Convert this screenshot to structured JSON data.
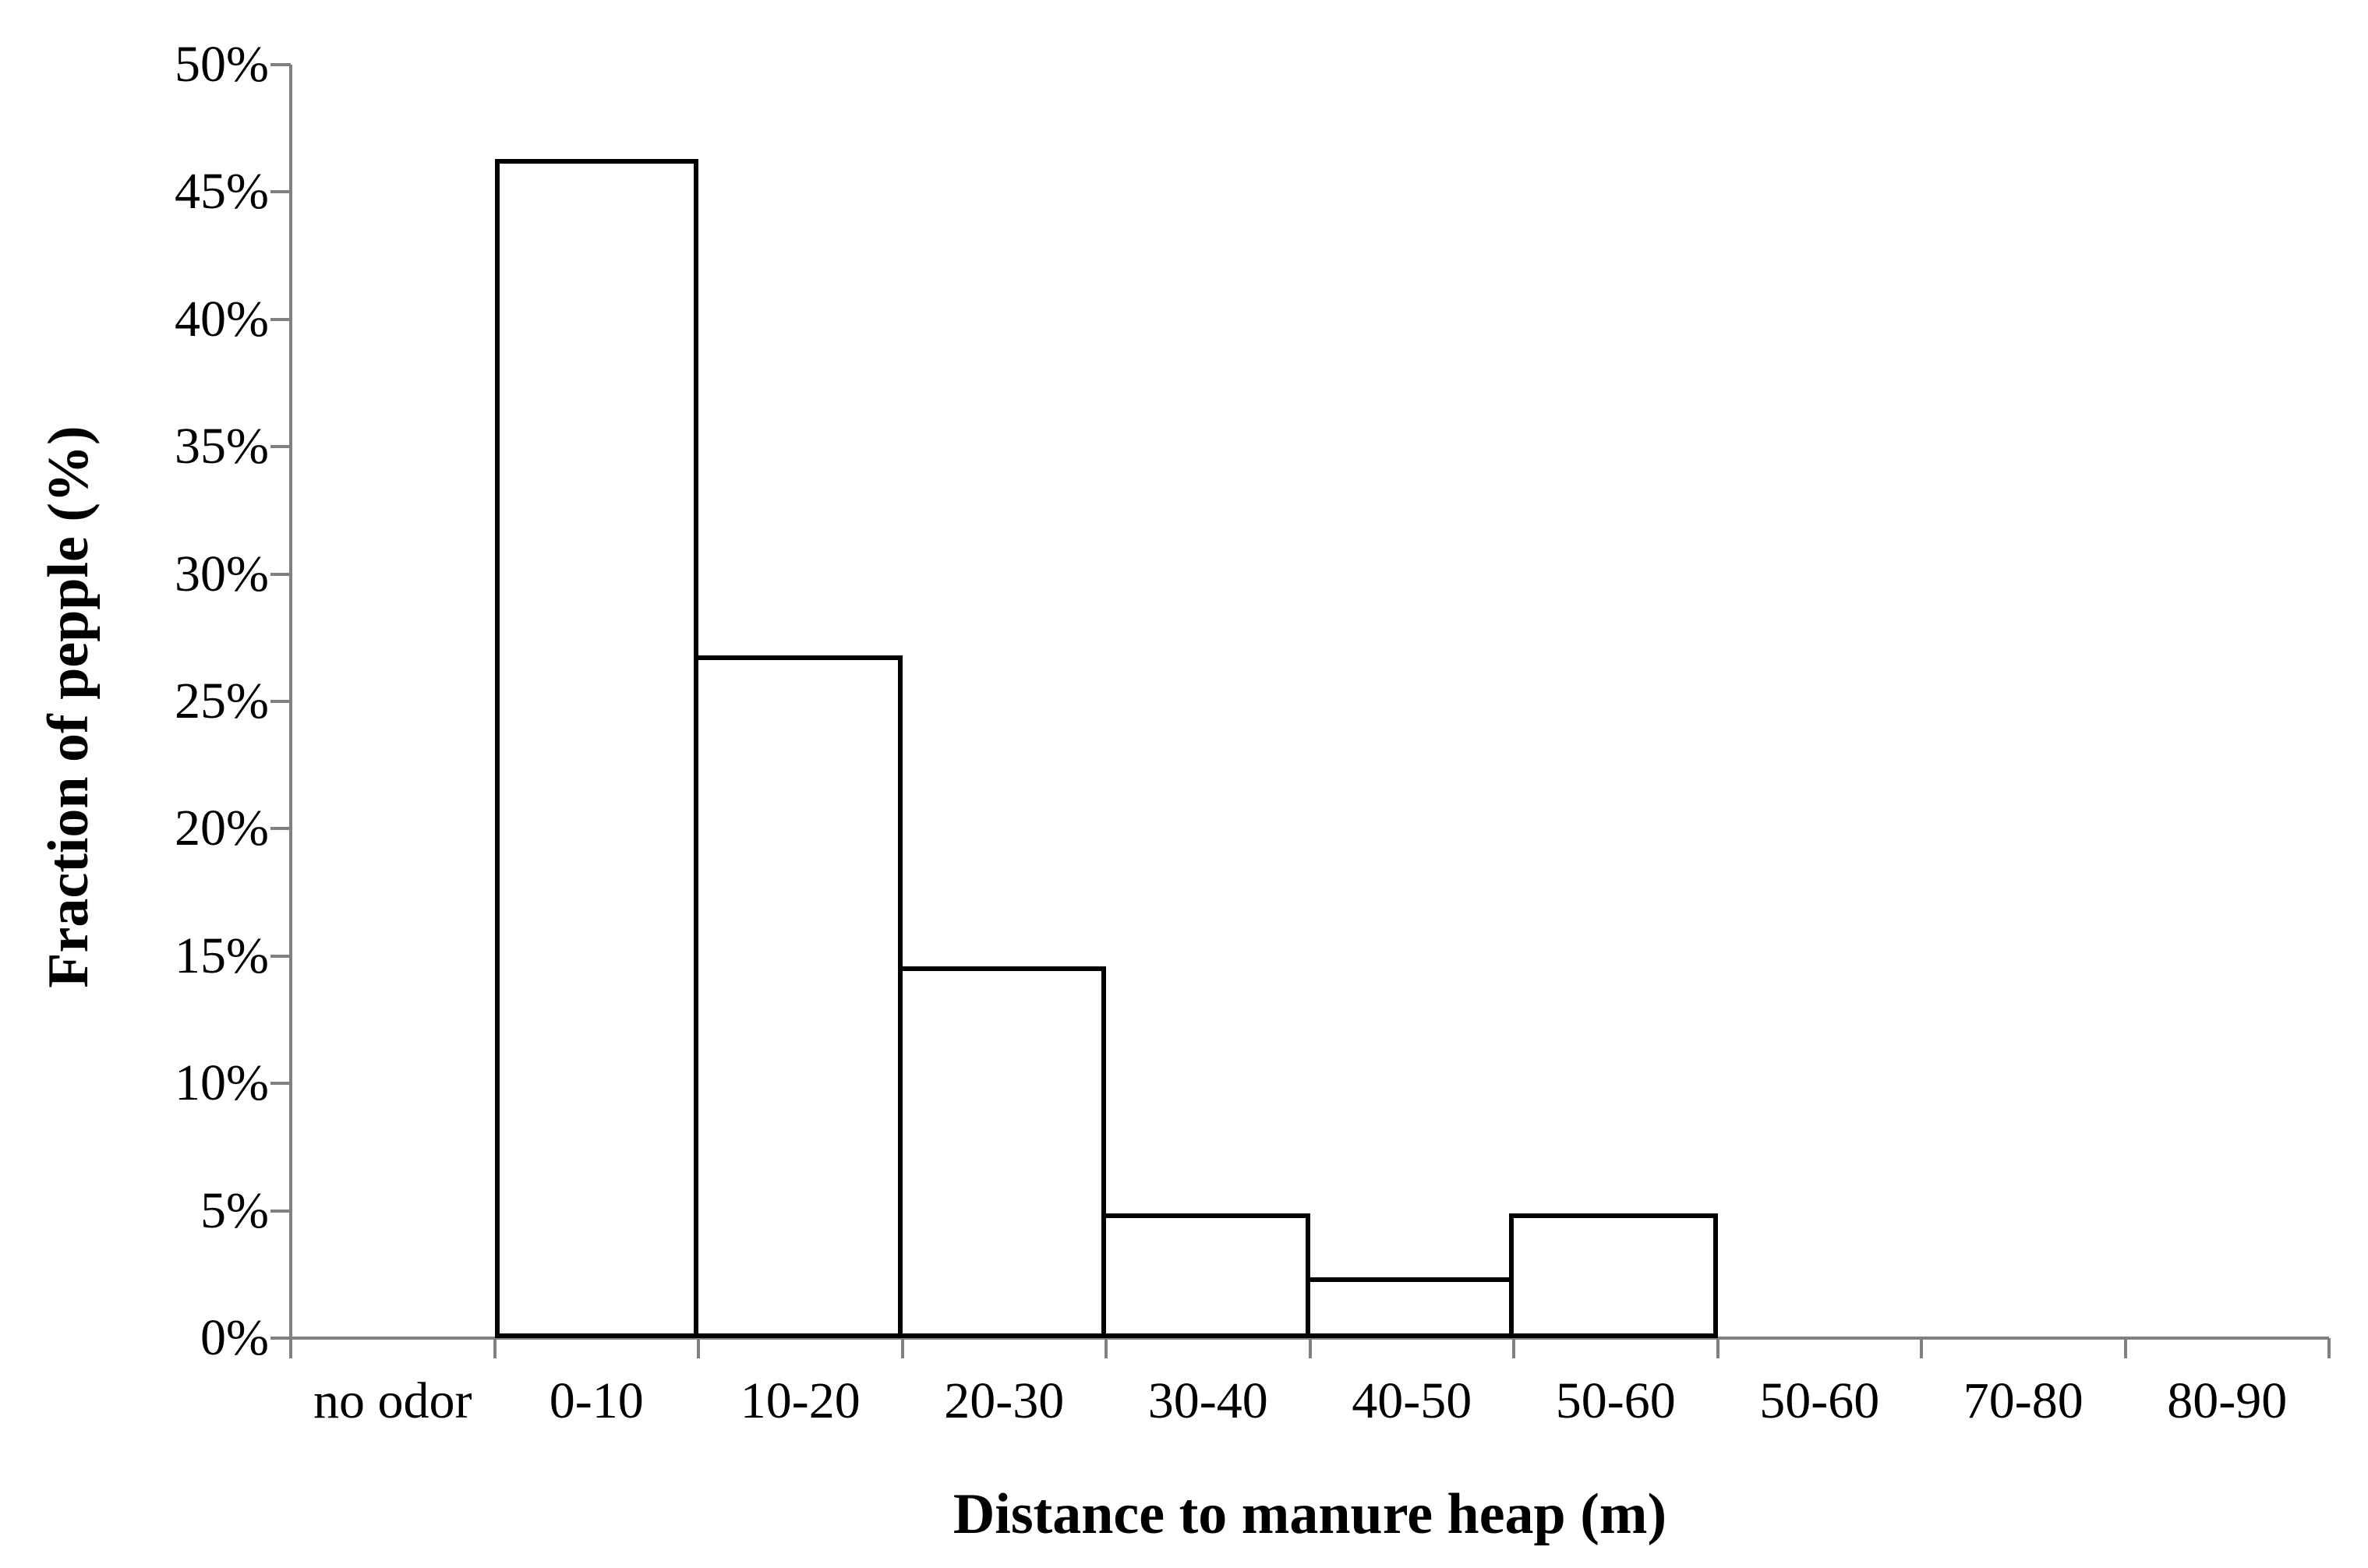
{
  "chart_data": {
    "type": "bar",
    "title": "",
    "categories": [
      "no odor",
      "0-10",
      "10-20",
      "20-30",
      "30-40",
      "40-50",
      "50-60",
      "50-60",
      "70-80",
      "80-90"
    ],
    "values": [
      0,
      46.3,
      26.8,
      14.6,
      4.9,
      2.4,
      4.9,
      0,
      0,
      0
    ],
    "xlabel": "Distance to manure heap (m)",
    "ylabel": "Fraction of pepple (%)",
    "ylim": [
      0,
      50
    ],
    "ytick_step": 5,
    "ytick_labels": [
      "0%",
      "5%",
      "10%",
      "15%",
      "20%",
      "25%",
      "30%",
      "35%",
      "40%",
      "45%",
      "50%"
    ],
    "grid": false,
    "legend": "none",
    "bar_fill": "#ffffff",
    "bar_border_color": "#000000",
    "axis_color": "#808080",
    "text_color": "#000000"
  }
}
